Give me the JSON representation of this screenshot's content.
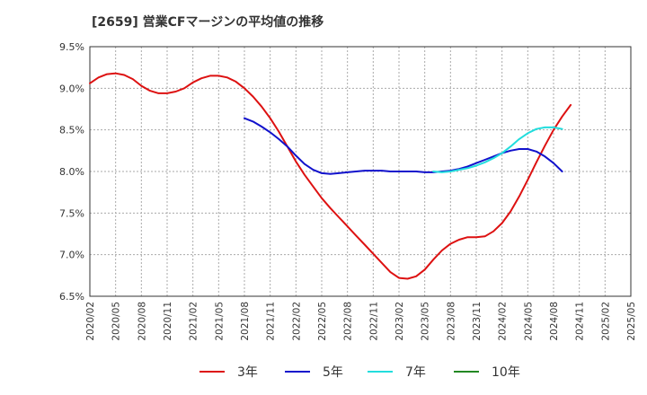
{
  "chart_data": {
    "type": "line",
    "title": "[2659]  営業CFマージンの平均値の推移",
    "xlabel": "",
    "ylabel": "",
    "ylim": [
      6.5,
      9.5
    ],
    "y_ticks": [
      "6.5%",
      "7.0%",
      "7.5%",
      "8.0%",
      "8.5%",
      "9.0%",
      "9.5%"
    ],
    "x_ticks": [
      "2020/02",
      "2020/05",
      "2020/08",
      "2020/11",
      "2021/02",
      "2021/05",
      "2021/08",
      "2021/11",
      "2022/02",
      "2022/05",
      "2022/08",
      "2022/11",
      "2023/02",
      "2023/05",
      "2023/08",
      "2023/11",
      "2024/02",
      "2024/05",
      "2024/08",
      "2024/11",
      "2025/02",
      "2025/05"
    ],
    "grid": true,
    "legend_position": "bottom",
    "series": [
      {
        "name": "3年",
        "color": "#dd1111",
        "points": [
          [
            "2020/02",
            9.06
          ],
          [
            "2020/03",
            9.13
          ],
          [
            "2020/04",
            9.17
          ],
          [
            "2020/05",
            9.18
          ],
          [
            "2020/06",
            9.16
          ],
          [
            "2020/07",
            9.11
          ],
          [
            "2020/08",
            9.03
          ],
          [
            "2020/09",
            8.97
          ],
          [
            "2020/10",
            8.94
          ],
          [
            "2020/11",
            8.94
          ],
          [
            "2020/12",
            8.96
          ],
          [
            "2021/01",
            9.0
          ],
          [
            "2021/02",
            9.07
          ],
          [
            "2021/03",
            9.12
          ],
          [
            "2021/04",
            9.15
          ],
          [
            "2021/05",
            9.15
          ],
          [
            "2021/06",
            9.13
          ],
          [
            "2021/07",
            9.08
          ],
          [
            "2021/08",
            9.0
          ],
          [
            "2021/09",
            8.9
          ],
          [
            "2021/10",
            8.78
          ],
          [
            "2021/11",
            8.64
          ],
          [
            "2021/12",
            8.48
          ],
          [
            "2022/01",
            8.3
          ],
          [
            "2022/02",
            8.12
          ],
          [
            "2022/03",
            7.96
          ],
          [
            "2022/04",
            7.82
          ],
          [
            "2022/05",
            7.68
          ],
          [
            "2022/06",
            7.56
          ],
          [
            "2022/07",
            7.45
          ],
          [
            "2022/08",
            7.34
          ],
          [
            "2022/09",
            7.23
          ],
          [
            "2022/10",
            7.12
          ],
          [
            "2022/11",
            7.01
          ],
          [
            "2022/12",
            6.9
          ],
          [
            "2023/01",
            6.79
          ],
          [
            "2023/02",
            6.72
          ],
          [
            "2023/03",
            6.71
          ],
          [
            "2023/04",
            6.74
          ],
          [
            "2023/05",
            6.82
          ],
          [
            "2023/06",
            6.94
          ],
          [
            "2023/07",
            7.05
          ],
          [
            "2023/08",
            7.13
          ],
          [
            "2023/09",
            7.18
          ],
          [
            "2023/10",
            7.21
          ],
          [
            "2023/11",
            7.21
          ],
          [
            "2023/12",
            7.22
          ],
          [
            "2024/01",
            7.28
          ],
          [
            "2024/02",
            7.38
          ],
          [
            "2024/03",
            7.52
          ],
          [
            "2024/04",
            7.7
          ],
          [
            "2024/05",
            7.9
          ],
          [
            "2024/06",
            8.11
          ],
          [
            "2024/07",
            8.31
          ],
          [
            "2024/08",
            8.5
          ],
          [
            "2024/09",
            8.66
          ],
          [
            "2024/10",
            8.8
          ]
        ]
      },
      {
        "name": "5年",
        "color": "#1111cc",
        "points": [
          [
            "2021/08",
            8.64
          ],
          [
            "2021/09",
            8.6
          ],
          [
            "2021/10",
            8.54
          ],
          [
            "2021/11",
            8.47
          ],
          [
            "2021/12",
            8.39
          ],
          [
            "2022/01",
            8.3
          ],
          [
            "2022/02",
            8.19
          ],
          [
            "2022/03",
            8.09
          ],
          [
            "2022/04",
            8.02
          ],
          [
            "2022/05",
            7.98
          ],
          [
            "2022/06",
            7.97
          ],
          [
            "2022/07",
            7.98
          ],
          [
            "2022/08",
            7.99
          ],
          [
            "2022/09",
            8.0
          ],
          [
            "2022/10",
            8.01
          ],
          [
            "2022/11",
            8.01
          ],
          [
            "2022/12",
            8.01
          ],
          [
            "2023/01",
            8.0
          ],
          [
            "2023/02",
            8.0
          ],
          [
            "2023/03",
            8.0
          ],
          [
            "2023/04",
            8.0
          ],
          [
            "2023/05",
            7.99
          ],
          [
            "2023/06",
            7.99
          ],
          [
            "2023/07",
            8.0
          ],
          [
            "2023/08",
            8.01
          ],
          [
            "2023/09",
            8.03
          ],
          [
            "2023/10",
            8.06
          ],
          [
            "2023/11",
            8.1
          ],
          [
            "2023/12",
            8.14
          ],
          [
            "2024/01",
            8.18
          ],
          [
            "2024/02",
            8.22
          ],
          [
            "2024/03",
            8.25
          ],
          [
            "2024/04",
            8.27
          ],
          [
            "2024/05",
            8.27
          ],
          [
            "2024/06",
            8.24
          ],
          [
            "2024/07",
            8.18
          ],
          [
            "2024/08",
            8.1
          ],
          [
            "2024/09",
            8.0
          ]
        ]
      },
      {
        "name": "7年",
        "color": "#22dddd",
        "points": [
          [
            "2023/06",
            8.0
          ],
          [
            "2023/07",
            7.99
          ],
          [
            "2023/08",
            8.0
          ],
          [
            "2023/09",
            8.02
          ],
          [
            "2023/10",
            8.04
          ],
          [
            "2023/11",
            8.07
          ],
          [
            "2023/12",
            8.11
          ],
          [
            "2024/01",
            8.16
          ],
          [
            "2024/02",
            8.22
          ],
          [
            "2024/03",
            8.3
          ],
          [
            "2024/04",
            8.39
          ],
          [
            "2024/05",
            8.46
          ],
          [
            "2024/06",
            8.51
          ],
          [
            "2024/07",
            8.53
          ],
          [
            "2024/08",
            8.53
          ],
          [
            "2024/09",
            8.51
          ]
        ]
      },
      {
        "name": "10年",
        "color": "#228822",
        "points": []
      }
    ]
  }
}
